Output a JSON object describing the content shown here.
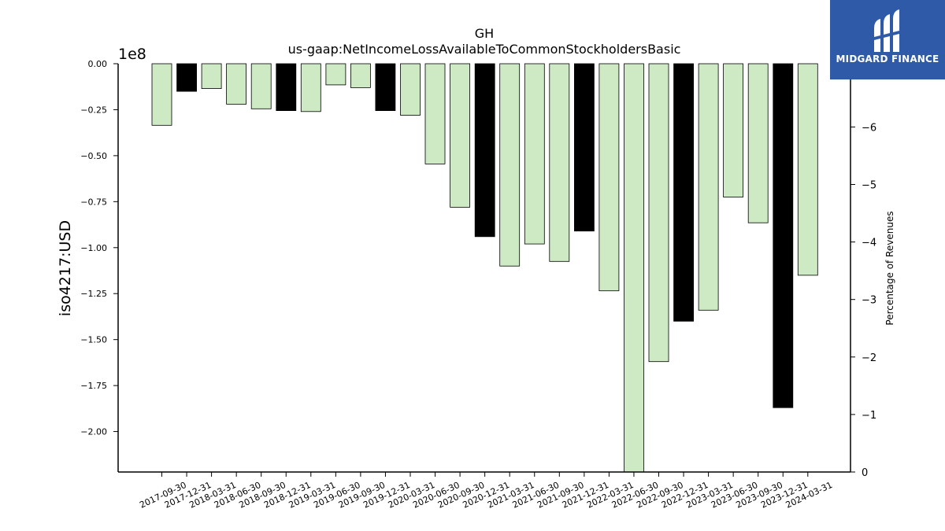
{
  "logo": {
    "text": "MIDGARD FINANCE"
  },
  "chart_data": {
    "type": "bar",
    "title": "GH",
    "subtitle": "us-gaap:NetIncomeLossAvailableToCommonStockholdersBasic",
    "ylabel": "iso4217:USD",
    "y_offset_label": "1e8",
    "ylabel_right": "Percentage of Revenues",
    "ylim": [
      -2.22,
      0
    ],
    "yticks": [
      0.0,
      -0.25,
      -0.5,
      -0.75,
      -1.0,
      -1.25,
      -1.5,
      -1.75,
      -2.0
    ],
    "ytick_labels": [
      "0.00",
      "−0.25",
      "−0.50",
      "−0.75",
      "−1.00",
      "−1.25",
      "−1.50",
      "−1.75",
      "−2.00"
    ],
    "ylim_right": [
      0,
      7.1
    ],
    "yticks_right": [
      0,
      1,
      2,
      3,
      4,
      5,
      6
    ],
    "ytick_labels_right": [
      "0",
      "−1",
      "−2",
      "−3",
      "−4",
      "−5",
      "−6"
    ],
    "categories": [
      "2017-09-30",
      "2017-12-31",
      "2018-03-31",
      "2018-06-30",
      "2018-09-30",
      "2018-12-31",
      "2019-03-31",
      "2019-06-30",
      "2019-09-30",
      "2019-12-31",
      "2020-03-31",
      "2020-06-30",
      "2020-09-30",
      "2020-12-31",
      "2021-03-31",
      "2021-06-30",
      "2021-09-30",
      "2021-12-31",
      "2022-03-31",
      "2022-06-30",
      "2022-09-30",
      "2022-12-31",
      "2023-03-31",
      "2023-06-30",
      "2023-09-30",
      "2023-12-31",
      "2024-03-31"
    ],
    "series": [
      {
        "values": [
          -0.335,
          -0.15,
          -0.135,
          -0.22,
          -0.245,
          -0.255,
          -0.26,
          -0.115,
          -0.13,
          -0.255,
          -0.28,
          -0.545,
          -0.78,
          -0.94,
          -1.1,
          -0.98,
          -1.075,
          -0.91,
          -1.235,
          -2.22,
          -1.62,
          -1.4,
          -1.34,
          -0.725,
          -0.865,
          -1.87,
          -1.15
        ],
        "annual": [
          false,
          true,
          false,
          false,
          false,
          true,
          false,
          false,
          false,
          true,
          false,
          false,
          false,
          true,
          false,
          false,
          false,
          true,
          false,
          false,
          false,
          true,
          false,
          false,
          false,
          true,
          false
        ]
      }
    ],
    "colors": {
      "quarter": "#cdeac5",
      "annual": "#000000",
      "edge": "#000000"
    }
  }
}
